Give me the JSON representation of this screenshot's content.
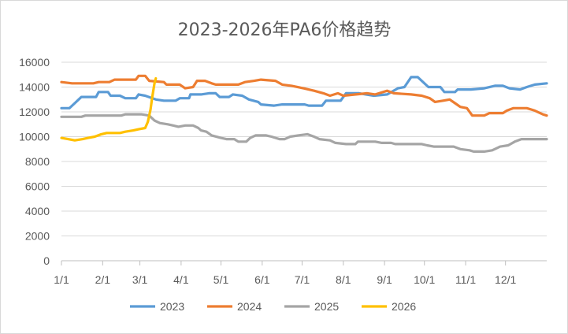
{
  "chart_data": {
    "type": "line",
    "title": "2023-2026年PA6价格趋势",
    "xlabel": "",
    "ylabel": "",
    "ylim": [
      0,
      16000
    ],
    "xlim": [
      0,
      365
    ],
    "yticks": [
      0,
      2000,
      4000,
      6000,
      8000,
      10000,
      12000,
      14000,
      16000
    ],
    "xticks": [
      {
        "label": "1/1",
        "day": 0
      },
      {
        "label": "2/1",
        "day": 31
      },
      {
        "label": "3/1",
        "day": 59
      },
      {
        "label": "4/1",
        "day": 90
      },
      {
        "label": "5/1",
        "day": 120
      },
      {
        "label": "6/1",
        "day": 151
      },
      {
        "label": "7/1",
        "day": 181
      },
      {
        "label": "8/1",
        "day": 212
      },
      {
        "label": "9/1",
        "day": 243
      },
      {
        "label": "10/1",
        "day": 273
      },
      {
        "label": "11/1",
        "day": 304
      },
      {
        "label": "12/1",
        "day": 334
      }
    ],
    "grid": "horizontal",
    "legend": "bottom",
    "series": [
      {
        "name": "2023",
        "color": "#5B9BD5",
        "points": [
          [
            0,
            12300
          ],
          [
            6,
            12300
          ],
          [
            10,
            12700
          ],
          [
            15,
            13200
          ],
          [
            26,
            13200
          ],
          [
            28,
            13600
          ],
          [
            35,
            13600
          ],
          [
            37,
            13300
          ],
          [
            44,
            13300
          ],
          [
            48,
            13100
          ],
          [
            56,
            13100
          ],
          [
            58,
            13400
          ],
          [
            63,
            13300
          ],
          [
            71,
            13000
          ],
          [
            77,
            12900
          ],
          [
            86,
            12900
          ],
          [
            89,
            13100
          ],
          [
            96,
            13100
          ],
          [
            97,
            13400
          ],
          [
            105,
            13400
          ],
          [
            111,
            13500
          ],
          [
            116,
            13500
          ],
          [
            119,
            13200
          ],
          [
            126,
            13200
          ],
          [
            129,
            13400
          ],
          [
            136,
            13300
          ],
          [
            141,
            13000
          ],
          [
            148,
            12800
          ],
          [
            150,
            12600
          ],
          [
            160,
            12500
          ],
          [
            166,
            12600
          ],
          [
            183,
            12600
          ],
          [
            186,
            12500
          ],
          [
            196,
            12500
          ],
          [
            199,
            12900
          ],
          [
            210,
            12900
          ],
          [
            214,
            13500
          ],
          [
            224,
            13500
          ],
          [
            229,
            13400
          ],
          [
            235,
            13300
          ],
          [
            245,
            13400
          ],
          [
            253,
            13900
          ],
          [
            258,
            14000
          ],
          [
            263,
            14800
          ],
          [
            268,
            14800
          ],
          [
            276,
            14000
          ],
          [
            285,
            14000
          ],
          [
            288,
            13600
          ],
          [
            296,
            13600
          ],
          [
            298,
            13800
          ],
          [
            308,
            13800
          ],
          [
            318,
            13900
          ],
          [
            326,
            14100
          ],
          [
            332,
            14100
          ],
          [
            337,
            13900
          ],
          [
            345,
            13800
          ],
          [
            350,
            14000
          ],
          [
            356,
            14200
          ],
          [
            365,
            14300
          ]
        ]
      },
      {
        "name": "2024",
        "color": "#ED7D31",
        "points": [
          [
            0,
            14400
          ],
          [
            8,
            14300
          ],
          [
            24,
            14300
          ],
          [
            28,
            14400
          ],
          [
            36,
            14400
          ],
          [
            40,
            14600
          ],
          [
            56,
            14600
          ],
          [
            58,
            14900
          ],
          [
            63,
            14900
          ],
          [
            66,
            14500
          ],
          [
            77,
            14400
          ],
          [
            79,
            14200
          ],
          [
            89,
            14200
          ],
          [
            93,
            13900
          ],
          [
            99,
            14000
          ],
          [
            102,
            14500
          ],
          [
            108,
            14500
          ],
          [
            113,
            14300
          ],
          [
            116,
            14200
          ],
          [
            133,
            14200
          ],
          [
            138,
            14400
          ],
          [
            145,
            14500
          ],
          [
            150,
            14600
          ],
          [
            161,
            14500
          ],
          [
            166,
            14200
          ],
          [
            173,
            14100
          ],
          [
            182,
            13900
          ],
          [
            190,
            13700
          ],
          [
            197,
            13500
          ],
          [
            202,
            13300
          ],
          [
            208,
            13500
          ],
          [
            212,
            13300
          ],
          [
            230,
            13500
          ],
          [
            236,
            13400
          ],
          [
            245,
            13700
          ],
          [
            250,
            13500
          ],
          [
            263,
            13400
          ],
          [
            271,
            13300
          ],
          [
            277,
            13100
          ],
          [
            281,
            12800
          ],
          [
            287,
            12900
          ],
          [
            292,
            13000
          ],
          [
            296,
            12700
          ],
          [
            300,
            12400
          ],
          [
            305,
            12300
          ],
          [
            309,
            11700
          ],
          [
            318,
            11700
          ],
          [
            322,
            11900
          ],
          [
            332,
            11900
          ],
          [
            335,
            12100
          ],
          [
            340,
            12300
          ],
          [
            350,
            12300
          ],
          [
            356,
            12100
          ],
          [
            362,
            11800
          ],
          [
            365,
            11700
          ]
        ]
      },
      {
        "name": "2025",
        "color": "#A5A5A5",
        "points": [
          [
            0,
            11600
          ],
          [
            15,
            11600
          ],
          [
            18,
            11700
          ],
          [
            45,
            11700
          ],
          [
            48,
            11800
          ],
          [
            60,
            11800
          ],
          [
            66,
            11700
          ],
          [
            70,
            11300
          ],
          [
            74,
            11100
          ],
          [
            80,
            11000
          ],
          [
            84,
            10900
          ],
          [
            88,
            10800
          ],
          [
            93,
            10900
          ],
          [
            99,
            10900
          ],
          [
            103,
            10700
          ],
          [
            105,
            10500
          ],
          [
            109,
            10400
          ],
          [
            113,
            10100
          ],
          [
            120,
            9900
          ],
          [
            124,
            9800
          ],
          [
            130,
            9800
          ],
          [
            133,
            9600
          ],
          [
            139,
            9600
          ],
          [
            142,
            9900
          ],
          [
            146,
            10100
          ],
          [
            154,
            10100
          ],
          [
            158,
            10000
          ],
          [
            164,
            9800
          ],
          [
            168,
            9800
          ],
          [
            172,
            10000
          ],
          [
            178,
            10100
          ],
          [
            185,
            10200
          ],
          [
            190,
            10000
          ],
          [
            194,
            9800
          ],
          [
            202,
            9700
          ],
          [
            206,
            9500
          ],
          [
            214,
            9400
          ],
          [
            221,
            9400
          ],
          [
            223,
            9600
          ],
          [
            236,
            9600
          ],
          [
            241,
            9500
          ],
          [
            248,
            9500
          ],
          [
            251,
            9400
          ],
          [
            271,
            9400
          ],
          [
            275,
            9300
          ],
          [
            280,
            9200
          ],
          [
            295,
            9200
          ],
          [
            300,
            9000
          ],
          [
            307,
            8900
          ],
          [
            310,
            8800
          ],
          [
            318,
            8800
          ],
          [
            324,
            8900
          ],
          [
            330,
            9200
          ],
          [
            336,
            9300
          ],
          [
            341,
            9600
          ],
          [
            346,
            9800
          ],
          [
            350,
            9800
          ],
          [
            365,
            9800
          ]
        ]
      },
      {
        "name": "2026",
        "color": "#FFC000",
        "points": [
          [
            0,
            9900
          ],
          [
            5,
            9800
          ],
          [
            10,
            9700
          ],
          [
            16,
            9800
          ],
          [
            20,
            9900
          ],
          [
            25,
            10000
          ],
          [
            30,
            10200
          ],
          [
            34,
            10300
          ],
          [
            44,
            10300
          ],
          [
            48,
            10400
          ],
          [
            54,
            10500
          ],
          [
            58,
            10600
          ],
          [
            63,
            10700
          ],
          [
            65,
            11200
          ],
          [
            67,
            12200
          ],
          [
            68,
            13000
          ],
          [
            70,
            14300
          ],
          [
            71,
            14700
          ]
        ]
      }
    ]
  }
}
